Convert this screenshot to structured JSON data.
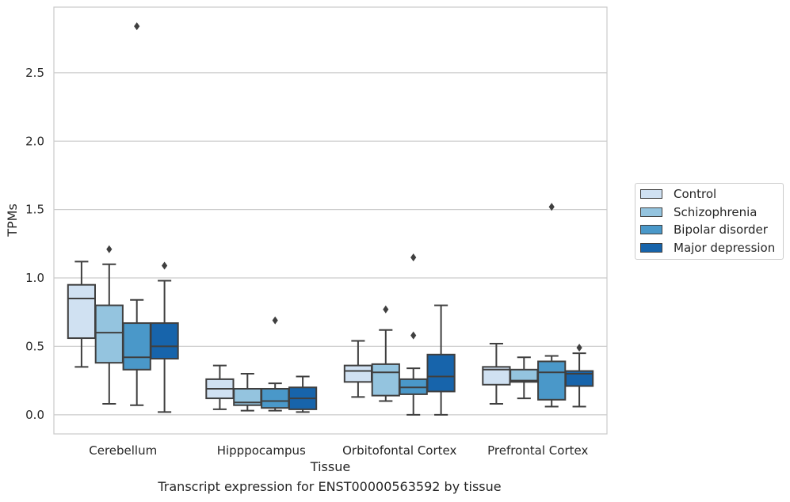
{
  "chart_data": {
    "type": "box",
    "caption": "Transcript expression for ENST00000563592 by tissue",
    "xlabel": "Tissue",
    "ylabel": "TPMs",
    "ylim": [
      -0.14,
      2.98
    ],
    "yticks": [
      0.0,
      0.5,
      1.0,
      1.5,
      2.0,
      2.5
    ],
    "ytick_labels": [
      "0.0",
      "0.5",
      "1.0",
      "1.5",
      "2.0",
      "2.5"
    ],
    "grid": "horizontal",
    "legend_position": "right",
    "categories": [
      "Cerebellum",
      "Hipppocampus",
      "Orbitofontal Cortex",
      "Prefrontal Cortex"
    ],
    "series": [
      {
        "name": "Control",
        "color": "#d0e1f2",
        "boxes": [
          {
            "whislo": 0.35,
            "q1": 0.56,
            "med": 0.85,
            "q3": 0.95,
            "whishi": 1.12,
            "fliers": []
          },
          {
            "whislo": 0.04,
            "q1": 0.12,
            "med": 0.19,
            "q3": 0.26,
            "whishi": 0.36,
            "fliers": []
          },
          {
            "whislo": 0.13,
            "q1": 0.24,
            "med": 0.32,
            "q3": 0.36,
            "whishi": 0.54,
            "fliers": []
          },
          {
            "whislo": 0.08,
            "q1": 0.22,
            "med": 0.33,
            "q3": 0.35,
            "whishi": 0.52,
            "fliers": []
          }
        ]
      },
      {
        "name": "Schizophrenia",
        "color": "#94c4df",
        "boxes": [
          {
            "whislo": 0.08,
            "q1": 0.38,
            "med": 0.6,
            "q3": 0.8,
            "whishi": 1.1,
            "fliers": [
              1.21
            ]
          },
          {
            "whislo": 0.03,
            "q1": 0.07,
            "med": 0.09,
            "q3": 0.19,
            "whishi": 0.3,
            "fliers": []
          },
          {
            "whislo": 0.1,
            "q1": 0.14,
            "med": 0.31,
            "q3": 0.37,
            "whishi": 0.62,
            "fliers": [
              0.77
            ]
          },
          {
            "whislo": 0.12,
            "q1": 0.24,
            "med": 0.25,
            "q3": 0.33,
            "whishi": 0.42,
            "fliers": []
          }
        ]
      },
      {
        "name": "Bipolar disorder",
        "color": "#4a98c9",
        "boxes": [
          {
            "whislo": 0.07,
            "q1": 0.33,
            "med": 0.42,
            "q3": 0.67,
            "whishi": 0.84,
            "fliers": [
              2.84
            ]
          },
          {
            "whislo": 0.03,
            "q1": 0.05,
            "med": 0.1,
            "q3": 0.19,
            "whishi": 0.23,
            "fliers": [
              0.69
            ]
          },
          {
            "whislo": 0.0,
            "q1": 0.15,
            "med": 0.2,
            "q3": 0.26,
            "whishi": 0.34,
            "fliers": [
              0.58,
              1.15
            ]
          },
          {
            "whislo": 0.06,
            "q1": 0.11,
            "med": 0.31,
            "q3": 0.39,
            "whishi": 0.43,
            "fliers": [
              1.52
            ]
          }
        ]
      },
      {
        "name": "Major depression",
        "color": "#1764ab",
        "boxes": [
          {
            "whislo": 0.02,
            "q1": 0.41,
            "med": 0.5,
            "q3": 0.67,
            "whishi": 0.98,
            "fliers": [
              1.09
            ]
          },
          {
            "whislo": 0.02,
            "q1": 0.04,
            "med": 0.12,
            "q3": 0.2,
            "whishi": 0.28,
            "fliers": []
          },
          {
            "whislo": 0.0,
            "q1": 0.17,
            "med": 0.28,
            "q3": 0.44,
            "whishi": 0.8,
            "fliers": []
          },
          {
            "whislo": 0.06,
            "q1": 0.21,
            "med": 0.3,
            "q3": 0.32,
            "whishi": 0.45,
            "fliers": [
              0.49
            ]
          }
        ]
      }
    ]
  }
}
